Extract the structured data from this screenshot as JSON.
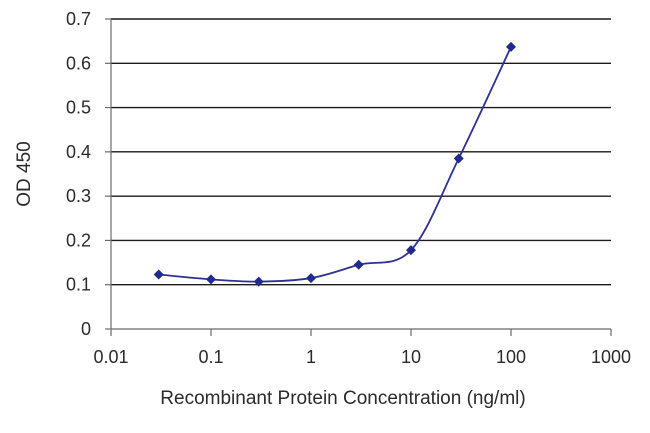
{
  "chart_data": {
    "type": "line",
    "title": "",
    "xlabel": "Recombinant Protein Concentration (ng/ml)",
    "ylabel": "OD 450",
    "xscale": "log",
    "xlim": [
      0.01,
      1000
    ],
    "ylim": [
      0,
      0.7
    ],
    "xticks": [
      0.01,
      0.1,
      1,
      10,
      100,
      1000
    ],
    "xtick_labels": [
      "0.01",
      "0.1",
      "1",
      "10",
      "100",
      "1000"
    ],
    "yticks": [
      0,
      0.1,
      0.2,
      0.3,
      0.4,
      0.5,
      0.6,
      0.7
    ],
    "ytick_labels": [
      "0",
      "0.1",
      "0.2",
      "0.3",
      "0.4",
      "0.5",
      "0.6",
      "0.7"
    ],
    "grid": "horizontal",
    "legend": "none",
    "series": [
      {
        "x": [
          0.03,
          0.1,
          0.3,
          1,
          3,
          10,
          30,
          100
        ],
        "y": [
          0.123,
          0.112,
          0.107,
          0.115,
          0.145,
          0.178,
          0.385,
          0.637
        ]
      }
    ],
    "colors": {
      "line": "#2e3192",
      "marker": "#1f2a8a",
      "grid": "#1a1a1a",
      "axis": "#6b6b6b"
    }
  }
}
